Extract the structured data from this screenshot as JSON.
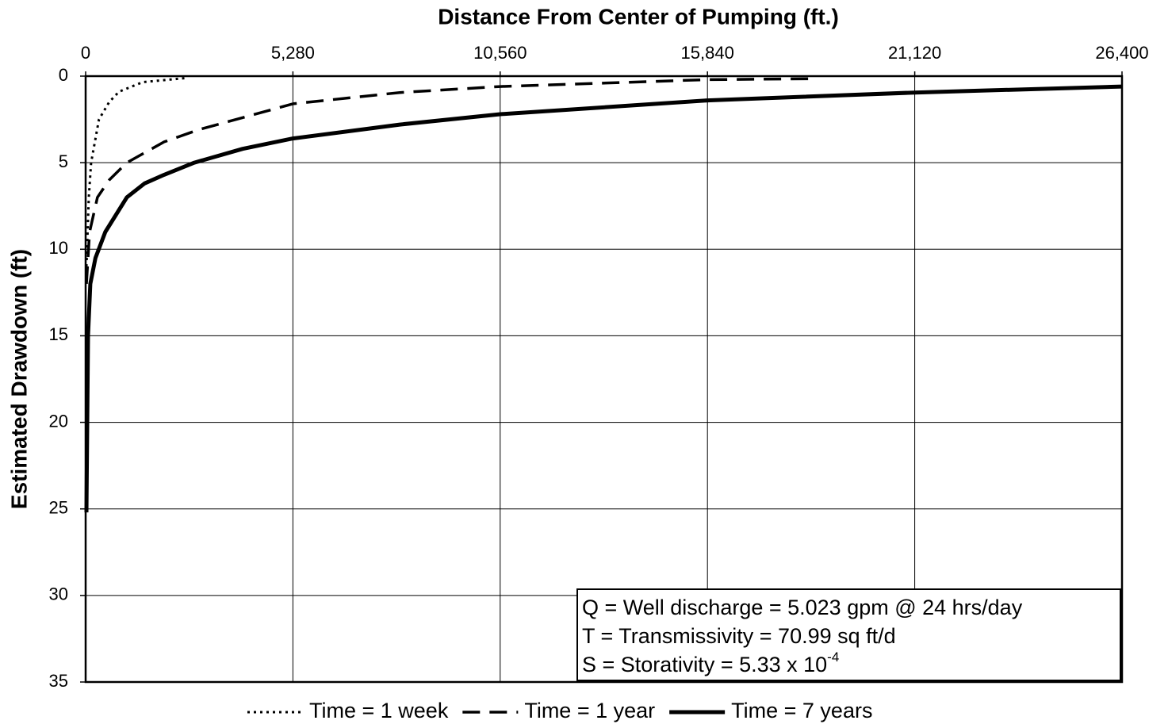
{
  "chart_data": {
    "type": "line",
    "title": "Distance From Center of Pumping (ft.)",
    "y_label": "Estimated Drawdown (ft)",
    "x_axis_position": "top",
    "y_inverted": true,
    "grid": true,
    "legend": "bottom",
    "xlim": [
      0,
      26400
    ],
    "xticks": [
      0,
      {
        "value": 5280,
        "label": "5,280"
      },
      {
        "value": 10560,
        "label": "10,560"
      },
      {
        "value": 15840,
        "label": "15,840"
      },
      {
        "value": 21120,
        "label": "21,120"
      },
      {
        "value": 26400,
        "label": "26,400"
      }
    ],
    "ylim": [
      0,
      35
    ],
    "yticks": [
      0,
      5,
      10,
      15,
      20,
      25,
      30,
      35
    ],
    "series": [
      {
        "name": "Time = 1 week",
        "color": "#000000",
        "dash": "dotted",
        "x": [
          20,
          80,
          140,
          340,
          600,
          850,
          1450,
          2600
        ],
        "values": [
          11,
          7,
          5,
          2.5,
          1.5,
          0.9,
          0.35,
          0.1
        ]
      },
      {
        "name": "Time = 1 year",
        "color": "#000000",
        "dash": "dashed",
        "x": [
          20,
          100,
          300,
          600,
          1050,
          2000,
          2870,
          5280,
          8000,
          10560,
          15840,
          18460
        ],
        "values": [
          12,
          9,
          7,
          6,
          5,
          3.8,
          3.1,
          1.6,
          0.95,
          0.6,
          0.2,
          0.15
        ]
      },
      {
        "name": "Time = 7 years",
        "color": "#000000",
        "dash": "solid",
        "x": [
          20,
          60,
          120,
          250,
          500,
          1050,
          1500,
          2000,
          2770,
          4000,
          5280,
          8000,
          10560,
          15840,
          21120,
          26400
        ],
        "values": [
          25.2,
          15,
          12,
          10.5,
          9,
          7,
          6.2,
          5.7,
          5,
          4.2,
          3.6,
          2.8,
          2.2,
          1.4,
          0.95,
          0.6
        ]
      }
    ],
    "annotations": [
      {
        "text": "Q = Well discharge = 5.023 gpm @ 24 hrs/day"
      },
      {
        "text": "T = Transmissivity = 70.99 sq ft/d"
      },
      {
        "text": "S = Storativity = 5.33 x 10",
        "sup": "-4"
      }
    ]
  }
}
